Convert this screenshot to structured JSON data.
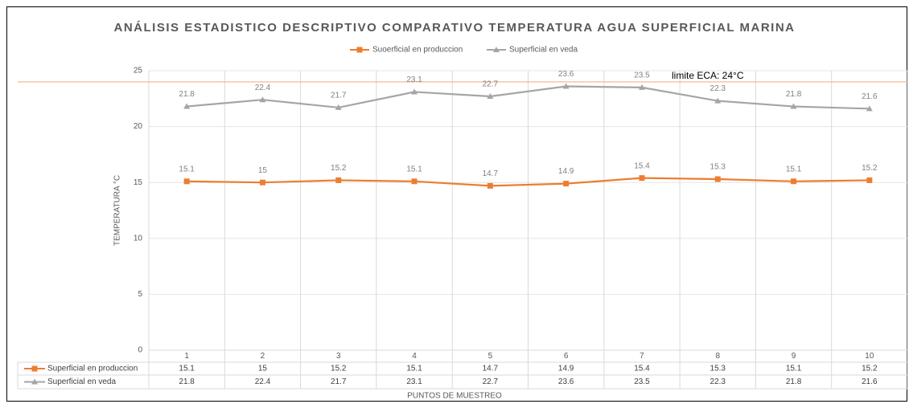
{
  "chart_data": {
    "type": "line",
    "title": "ANÁLISIS ESTADISTICO DESCRIPTIVO COMPARATIVO TEMPERATURA AGUA SUPERFICIAL MARINA",
    "x_label": "PUNTOS DE MUESTREO",
    "y_label": "TEMPERATURA °C",
    "categories": [
      "1",
      "2",
      "3",
      "4",
      "5",
      "6",
      "7",
      "8",
      "9",
      "10"
    ],
    "series": [
      {
        "name": "Suoerficial  en produccion",
        "table_label": "Superficial  en produccion",
        "color": "#ed7d31",
        "marker": "square",
        "values": [
          15.1,
          15,
          15.2,
          15.1,
          14.7,
          14.9,
          15.4,
          15.3,
          15.1,
          15.2
        ]
      },
      {
        "name": "Superficial  en veda",
        "table_label": "Superficial  en veda",
        "color": "#a5a5a5",
        "marker": "triangle",
        "values": [
          21.8,
          22.4,
          21.7,
          23.1,
          22.7,
          23.6,
          23.5,
          22.3,
          21.8,
          21.6
        ]
      }
    ],
    "annotation": {
      "text": "limite ECA: 24°C",
      "value": 24,
      "color": "#f4b183"
    },
    "ylim": [
      0,
      25
    ],
    "yticks": [
      0,
      5,
      10,
      15,
      20,
      25
    ],
    "grid": true,
    "legend": "top"
  }
}
